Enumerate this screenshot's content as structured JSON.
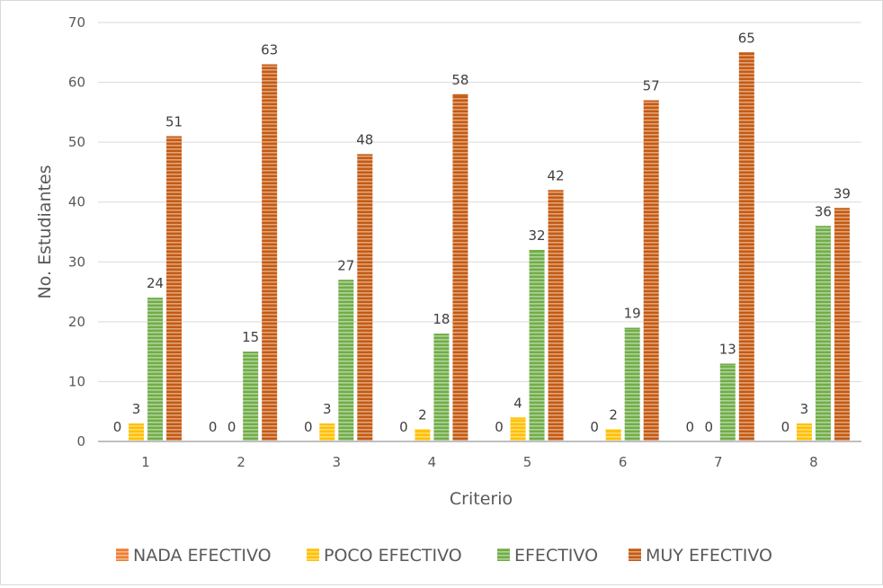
{
  "chart_data": {
    "type": "bar",
    "title": "",
    "xlabel": "Criterio",
    "ylabel": "No. Estudiantes",
    "ylim": [
      0,
      70
    ],
    "yticks": [
      "0",
      "10",
      "20",
      "30",
      "40",
      "50",
      "60",
      "70"
    ],
    "categories": [
      "1",
      "2",
      "3",
      "4",
      "5",
      "6",
      "7",
      "8"
    ],
    "grid": true,
    "legend_position": "bottom",
    "series": [
      {
        "name": "NADA EFECTIVO",
        "color": "#ed7d31",
        "values": [
          0,
          0,
          0,
          0,
          0,
          0,
          0,
          0
        ]
      },
      {
        "name": "POCO EFECTIVO",
        "color": "#ffc000",
        "values": [
          3,
          0,
          3,
          2,
          4,
          2,
          0,
          3
        ]
      },
      {
        "name": "EFECTIVO",
        "color": "#70ad47",
        "values": [
          24,
          15,
          27,
          18,
          32,
          19,
          13,
          36
        ]
      },
      {
        "name": "MUY EFECTIVO",
        "color": "#c55a11",
        "values": [
          51,
          63,
          48,
          58,
          42,
          57,
          65,
          39
        ]
      }
    ]
  }
}
